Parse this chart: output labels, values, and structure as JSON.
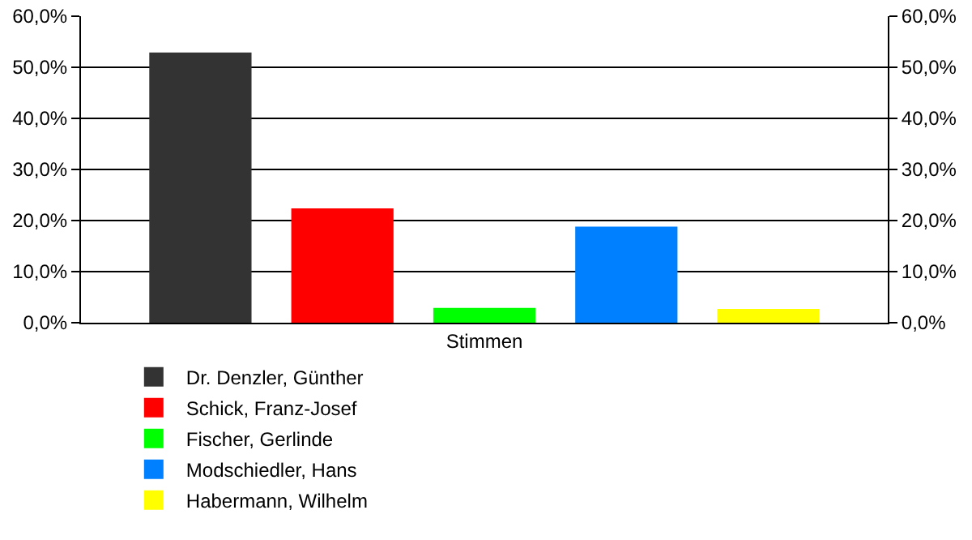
{
  "chart_data": {
    "type": "bar",
    "categories": [
      "Stimmen"
    ],
    "series": [
      {
        "name": "Dr. Denzler, Günther",
        "color": "#333333",
        "values": [
          52.9
        ]
      },
      {
        "name": "Schick, Franz-Josef",
        "color": "#ff0000",
        "values": [
          22.4
        ]
      },
      {
        "name": "Fischer, Gerlinde",
        "color": "#00ff00",
        "values": [
          2.9
        ]
      },
      {
        "name": "Modschiedler, Hans",
        "color": "#0080ff",
        "values": [
          18.8
        ]
      },
      {
        "name": "Habermann, Wilhelm",
        "color": "#ffff00",
        "values": [
          2.7
        ]
      }
    ],
    "ylim": [
      0,
      60
    ],
    "yticks": [
      {
        "value": 0,
        "label": "0,0%"
      },
      {
        "value": 10,
        "label": "10,0%"
      },
      {
        "value": 20,
        "label": "20,0%"
      },
      {
        "value": 30,
        "label": "30,0%"
      },
      {
        "value": 40,
        "label": "40,0%"
      },
      {
        "value": 50,
        "label": "50,0%"
      },
      {
        "value": 60,
        "label": "60,0%"
      }
    ],
    "grid": "y",
    "legend": "bottom"
  }
}
